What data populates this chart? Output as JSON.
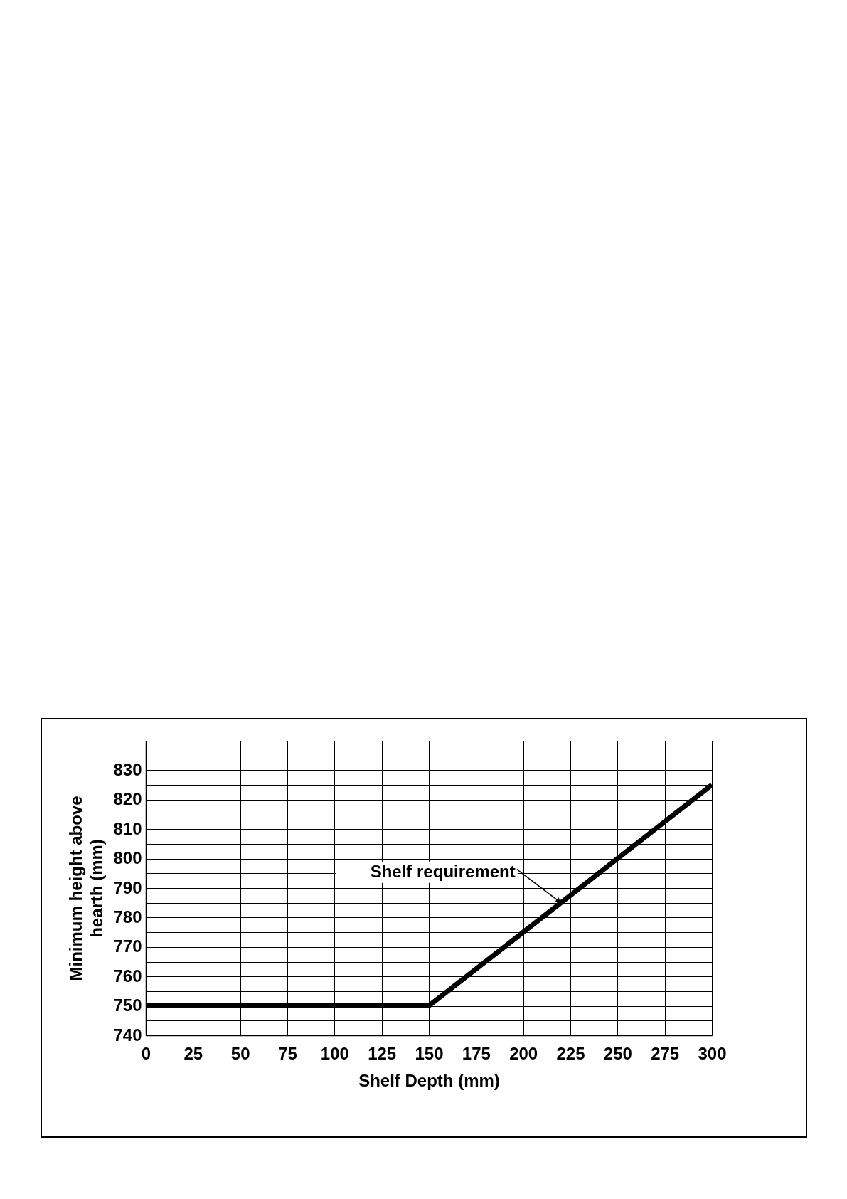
{
  "chart_data": {
    "type": "line",
    "xlabel": "Shelf Depth (mm)",
    "ylabel": "Minimum height above hearth (mm)",
    "x": [
      0,
      150,
      300
    ],
    "series": [
      {
        "color": "#000000",
        "values": [
          750,
          750,
          825
        ]
      }
    ],
    "xlim": [
      0,
      300
    ],
    "ylim": [
      740,
      840
    ],
    "xticks": [
      0,
      25,
      50,
      75,
      100,
      125,
      150,
      175,
      200,
      225,
      250,
      275,
      300
    ],
    "yticks": [
      740,
      {
        "value": 745,
        "label": null
      },
      750,
      {
        "value": 755,
        "label": null
      },
      760,
      {
        "value": 765,
        "label": null
      },
      770,
      {
        "value": 775,
        "label": null
      },
      780,
      {
        "value": 785,
        "label": null
      },
      790,
      {
        "value": 795,
        "label": null
      },
      800,
      {
        "value": 805,
        "label": null
      },
      810,
      {
        "value": 815,
        "label": null
      },
      820,
      {
        "value": 825,
        "label": null
      },
      830,
      {
        "value": 835,
        "label": null
      },
      {
        "value": 840,
        "label": null
      }
    ],
    "grid": true,
    "marker": "none",
    "line_style": "solid",
    "annotations": [
      {
        "text": "Shelf requirement",
        "x": 220,
        "y": 785
      }
    ]
  }
}
